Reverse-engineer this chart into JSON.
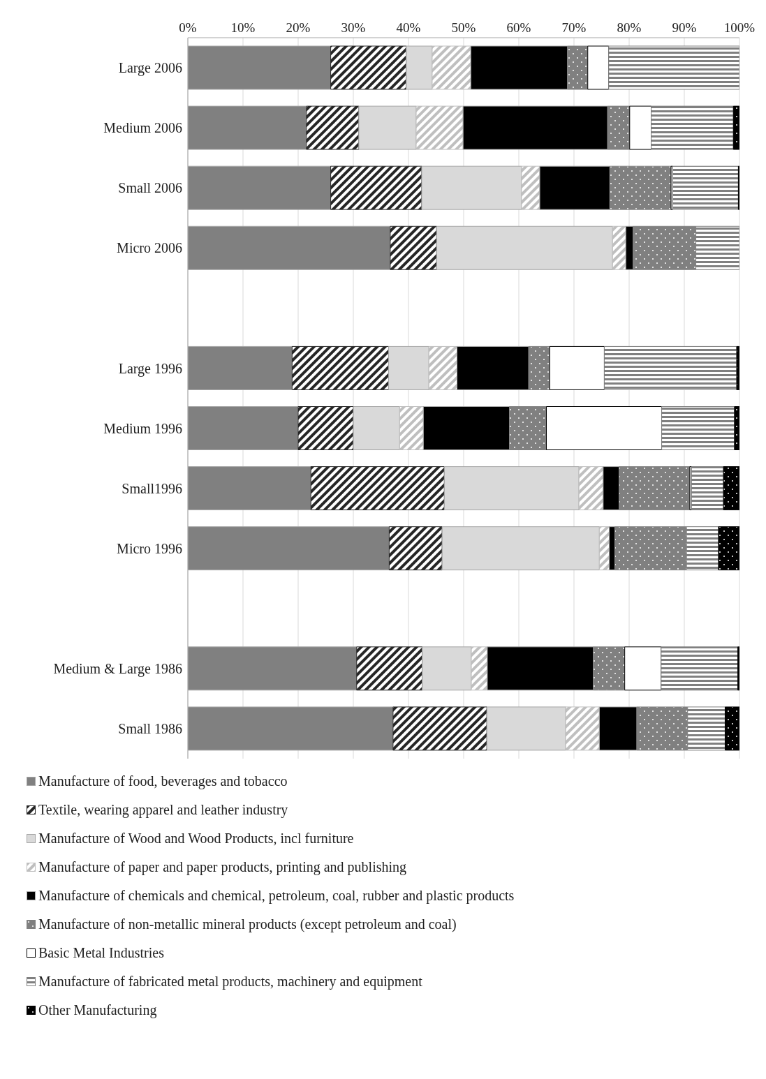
{
  "chart_data": {
    "type": "bar",
    "orientation": "horizontal",
    "stacked": true,
    "categories": [
      "Large 2006",
      "Medium 2006",
      "Small 2006",
      "Micro 2006",
      null,
      "Large 1996",
      "Medium 1996",
      "Small1996",
      "Micro 1996",
      null,
      "Medium & Large 1986",
      "Small 1986"
    ],
    "series": [
      {
        "name": "Manufacture of food, beverages and tobacco",
        "color": "#808080",
        "values": [
          25.9,
          21.5,
          25.9,
          36.7,
          null,
          18.9,
          20.0,
          22.3,
          36.5,
          null,
          30.6,
          37.2
        ]
      },
      {
        "name": "Textile, wearing apparel and leather industry",
        "color": "#262626",
        "values": [
          13.7,
          9.5,
          16.5,
          8.4,
          null,
          17.5,
          10.0,
          24.2,
          9.6,
          null,
          11.9,
          17.0
        ]
      },
      {
        "name": "Manufacture of Wood and Wood Products, incl furniture",
        "color": "#d9d9d9",
        "values": [
          4.7,
          10.4,
          18.1,
          31.9,
          null,
          7.3,
          8.4,
          24.4,
          28.5,
          null,
          8.9,
          14.3
        ]
      },
      {
        "name": "Manufacture of paper and paper products, printing and publishing",
        "color": "#bfbfbf",
        "values": [
          7.0,
          8.5,
          3.3,
          2.4,
          null,
          5.1,
          4.3,
          4.4,
          1.8,
          null,
          2.9,
          6.1
        ]
      },
      {
        "name": "Manufacture of chemicals and chemical, petroleum, coal, rubber and plastic products",
        "color": "#000000",
        "values": [
          17.5,
          26.2,
          12.7,
          1.3,
          null,
          13.0,
          15.6,
          2.9,
          1.0,
          null,
          19.2,
          6.8
        ]
      },
      {
        "name": "Manufacture of non-metallic mineral products (except petroleum and coal)",
        "color": "#808080",
        "values": [
          3.7,
          4.0,
          11.1,
          11.4,
          null,
          3.8,
          6.7,
          12.8,
          13.0,
          null,
          5.7,
          9.2
        ]
      },
      {
        "name": "Basic Metal Industries",
        "color": "#ffffff",
        "values": [
          3.8,
          3.9,
          0.3,
          0,
          null,
          9.9,
          20.9,
          0.3,
          0,
          null,
          6.6,
          0
        ]
      },
      {
        "name": "Manufacture of fabricated metal products, machinery and equipment",
        "color": "#808080",
        "values": [
          23.8,
          14.9,
          11.9,
          7.9,
          null,
          24.0,
          13.2,
          5.8,
          5.8,
          null,
          13.9,
          6.8
        ]
      },
      {
        "name": "Other Manufacturing",
        "color": "#000000",
        "values": [
          0,
          1.1,
          0.2,
          0,
          null,
          0.5,
          0.9,
          2.9,
          3.8,
          null,
          0.3,
          2.6
        ]
      }
    ],
    "xlim": [
      0,
      100
    ],
    "xticks": [
      {
        "value": 0,
        "label": "0%"
      },
      {
        "value": 10,
        "label": "10%"
      },
      {
        "value": 20,
        "label": "20%"
      },
      {
        "value": 30,
        "label": "30%"
      },
      {
        "value": 40,
        "label": "40%"
      },
      {
        "value": 50,
        "label": "50%"
      },
      {
        "value": 60,
        "label": "60%"
      },
      {
        "value": 70,
        "label": "70%"
      },
      {
        "value": 80,
        "label": "80%"
      },
      {
        "value": 90,
        "label": "90%"
      },
      {
        "value": 100,
        "label": "100%"
      }
    ],
    "grid": "x",
    "legend": "bottom"
  }
}
